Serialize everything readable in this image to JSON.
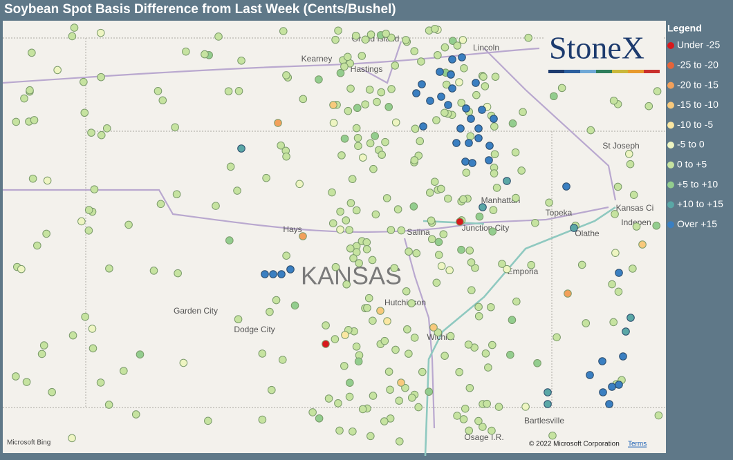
{
  "header": {
    "title": "Soybean Spot Basis Difference from Last Week (Cents/Bushel)"
  },
  "legend": {
    "title": "Legend",
    "items": [
      {
        "label": "Under -25",
        "color": "#d7191c"
      },
      {
        "label": "-25 to -20",
        "color": "#e4643a"
      },
      {
        "label": "-20 to -15",
        "color": "#f2a05a"
      },
      {
        "label": "-15 to -10",
        "color": "#f8c97c"
      },
      {
        "label": "-10 to -5",
        "color": "#fbe7a2"
      },
      {
        "label": "-5 to 0",
        "color": "#eef5c2"
      },
      {
        "label": "0 to +5",
        "color": "#c6e3a0"
      },
      {
        "label": "+5 to +10",
        "color": "#93cd8e"
      },
      {
        "label": "+10 to +15",
        "color": "#5aa7a6"
      },
      {
        "label": "Over +15",
        "color": "#3a7fc1"
      }
    ]
  },
  "map": {
    "state_label": "KANSAS",
    "cities": [
      "Grand Island",
      "Kearney",
      "Hastings",
      "Lincoln",
      "St Joseph",
      "Manhattan",
      "Topeka",
      "Kansas Ci",
      "Indepen",
      "Junction City",
      "Hays",
      "Salina",
      "Olathe",
      "Emporia",
      "Hutchinson",
      "Garden City",
      "Dodge City",
      "Wichita",
      "Bartlesville",
      "Osage I.R."
    ],
    "logo": "StoneX",
    "provider": "Microsoft Bing",
    "copyright": "© 2022 Microsoft Corporation",
    "terms": "Terms"
  }
}
